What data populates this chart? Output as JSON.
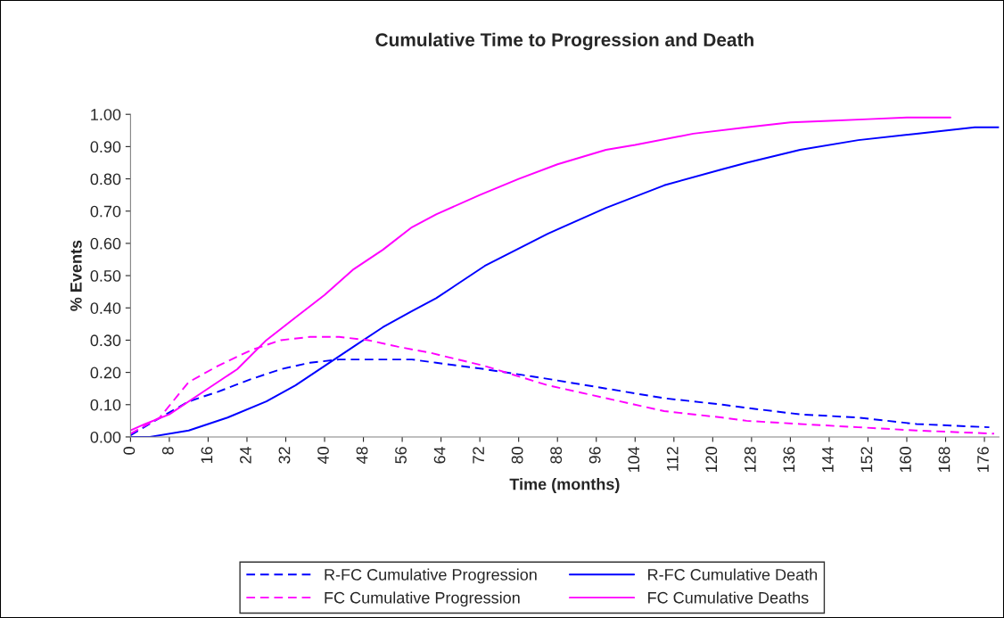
{
  "chart_data": {
    "type": "line",
    "title": "Cumulative Time to Progression and Death",
    "xlabel": "Time (months)",
    "ylabel": "% Events",
    "xlim": [
      0,
      179
    ],
    "xticks": [
      0,
      8,
      16,
      24,
      32,
      40,
      48,
      56,
      64,
      72,
      80,
      88,
      96,
      104,
      112,
      120,
      128,
      136,
      144,
      152,
      160,
      168,
      176
    ],
    "ylim": [
      0,
      1
    ],
    "yticks": [
      {
        "value": 0,
        "label": "0.00"
      },
      {
        "value": 0.1,
        "label": "0.10"
      },
      {
        "value": 0.2,
        "label": "0.20"
      },
      {
        "value": 0.3,
        "label": "0.30"
      },
      {
        "value": 0.4,
        "label": "0.40"
      },
      {
        "value": 0.5,
        "label": "0.50"
      },
      {
        "value": 0.6,
        "label": "0.60"
      },
      {
        "value": 0.7,
        "label": "0.70"
      },
      {
        "value": 0.8,
        "label": "0.80"
      },
      {
        "value": 0.9,
        "label": "0.90"
      },
      {
        "value": 1,
        "label": "1.00"
      }
    ],
    "grid": false,
    "legend": "bottom",
    "marker": "none",
    "series": [
      {
        "name": "R-FC Cumulative Progression",
        "color": "#0000ff",
        "line_style": "dashed",
        "x": [
          0,
          5,
          12,
          18,
          25,
          31,
          37,
          43,
          58,
          63,
          73,
          86,
          98,
          110,
          122,
          127,
          138,
          150,
          162,
          177
        ],
        "values": [
          0.005,
          0.05,
          0.11,
          0.14,
          0.18,
          0.21,
          0.23,
          0.24,
          0.24,
          0.23,
          0.21,
          0.18,
          0.15,
          0.12,
          0.1,
          0.09,
          0.07,
          0.06,
          0.04,
          0.03
        ]
      },
      {
        "name": "R-FC Cumulative Death",
        "color": "#0000ff",
        "line_style": "solid",
        "x": [
          0,
          4,
          12,
          20,
          28,
          34,
          40,
          46,
          52,
          58,
          63,
          73,
          86,
          98,
          110,
          122,
          127,
          138,
          150,
          162,
          174,
          179
        ],
        "values": [
          0,
          0,
          0.02,
          0.06,
          0.11,
          0.16,
          0.22,
          0.28,
          0.34,
          0.39,
          0.43,
          0.53,
          0.63,
          0.71,
          0.78,
          0.83,
          0.85,
          0.89,
          0.92,
          0.94,
          0.96,
          0.96
        ]
      },
      {
        "name": "FC Cumulative Progression",
        "color": "#ff00ff",
        "line_style": "dashed",
        "x": [
          0,
          6,
          12,
          18,
          25,
          31,
          37,
          43,
          49,
          55,
          62,
          73,
          86,
          98,
          110,
          122,
          127,
          138,
          150,
          162,
          178
        ],
        "values": [
          0.01,
          0.06,
          0.17,
          0.22,
          0.27,
          0.3,
          0.31,
          0.31,
          0.3,
          0.28,
          0.26,
          0.22,
          0.16,
          0.12,
          0.08,
          0.06,
          0.05,
          0.04,
          0.03,
          0.02,
          0.01
        ]
      },
      {
        "name": "FC Cumulative Deaths",
        "color": "#ff00ff",
        "line_style": "solid",
        "x": [
          0,
          3,
          8,
          15,
          22,
          28,
          34,
          40,
          46,
          52,
          58,
          63,
          72,
          80,
          88,
          98,
          104,
          116,
          127,
          136,
          144,
          152,
          160,
          169
        ],
        "values": [
          0.02,
          0.04,
          0.07,
          0.14,
          0.21,
          0.3,
          0.37,
          0.44,
          0.52,
          0.58,
          0.65,
          0.69,
          0.75,
          0.8,
          0.845,
          0.89,
          0.905,
          0.94,
          0.96,
          0.975,
          0.98,
          0.985,
          0.99,
          0.99
        ]
      }
    ]
  }
}
